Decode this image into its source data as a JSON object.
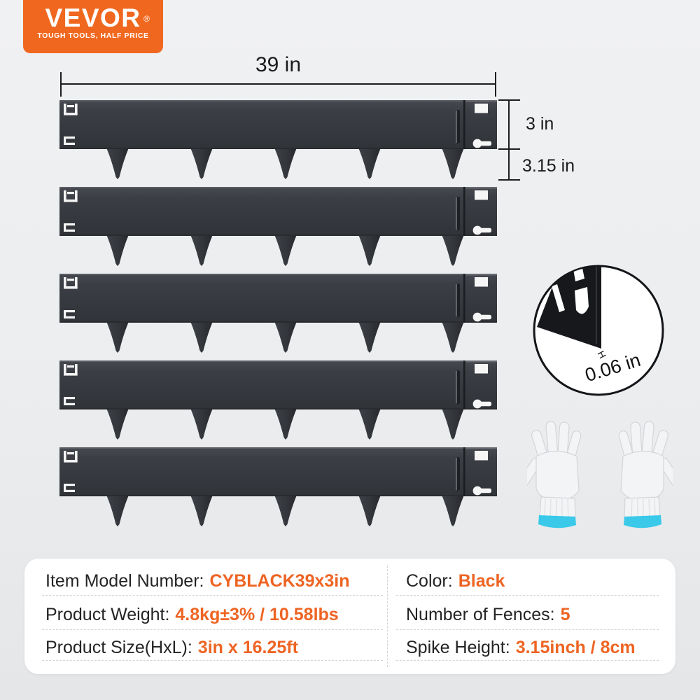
{
  "logo": {
    "brand": "VEVOR",
    "registered_mark": "®",
    "tagline": "TOUGH TOOLS, HALF PRICE"
  },
  "dimensions": {
    "total_length": "39 in",
    "panel_height": "3 in",
    "spike_height": "3.15 in"
  },
  "detail_callout": {
    "thickness": "0.06 in",
    "thickness_axis_marker": "H"
  },
  "spec_table": {
    "left_rows": [
      {
        "label": "Item Model Number:",
        "value": "CYBLACK39x3in"
      },
      {
        "label": "Product Weight:",
        "value": "4.8kg±3% / 10.58lbs"
      },
      {
        "label": "Product Size(HxL):",
        "value": "3in x 16.25ft"
      }
    ],
    "right_rows": [
      {
        "label": "Color:",
        "value": "Black"
      },
      {
        "label": "Number of Fences:",
        "value": "5"
      },
      {
        "label": "Spike Height:",
        "value": "3.15inch / 8cm"
      }
    ]
  },
  "product": {
    "fence_count": 5
  },
  "colors": {
    "logo_orange": "#f0681f",
    "accent_orange": "#ee6423",
    "steel_dark": "#383b41",
    "glove_trim_cyan": "#3ac9e9"
  }
}
